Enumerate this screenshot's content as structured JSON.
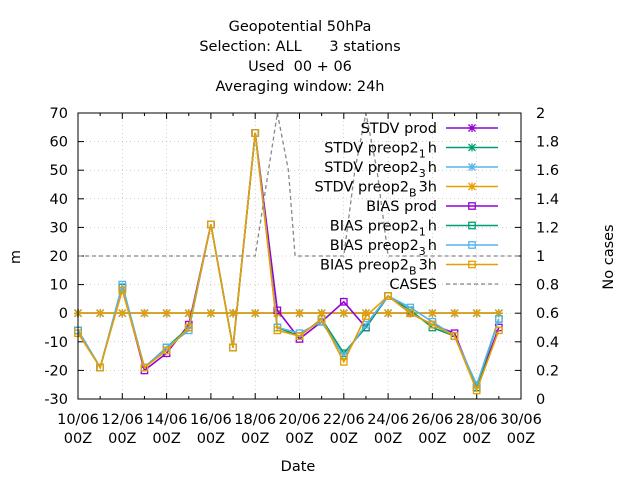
{
  "chart_data": {
    "type": "line",
    "title": [
      "Geopotential 50hPa",
      "Selection: ALL      3 stations",
      "Used  00 + 06",
      "Averaging window: 24h"
    ],
    "xlabel": "Date",
    "ylabel": "m",
    "y2label": "No cases",
    "x_ticks": [
      {
        "top": "10/06",
        "bottom": "00Z"
      },
      {
        "top": "12/06",
        "bottom": "00Z"
      },
      {
        "top": "14/06",
        "bottom": "00Z"
      },
      {
        "top": "16/06",
        "bottom": "00Z"
      },
      {
        "top": "18/06",
        "bottom": "00Z"
      },
      {
        "top": "20/06",
        "bottom": "00Z"
      },
      {
        "top": "22/06",
        "bottom": "00Z"
      },
      {
        "top": "24/06",
        "bottom": "00Z"
      },
      {
        "top": "26/06",
        "bottom": "00Z"
      },
      {
        "top": "28/06",
        "bottom": "00Z"
      },
      {
        "top": "30/06",
        "bottom": "00Z"
      }
    ],
    "x_range_days": [
      0,
      20
    ],
    "x_origin": "2010-06-10",
    "ylim": [
      -30,
      70
    ],
    "y_ticks": [
      -30,
      -20,
      -10,
      0,
      10,
      20,
      30,
      40,
      50,
      60,
      70
    ],
    "y2lim": [
      0,
      2
    ],
    "y2_ticks": [
      "0",
      "0.2",
      "0.4",
      "0.6",
      "0.8",
      "1",
      "1.2",
      "1.4",
      "1.6",
      "1.8",
      "2"
    ],
    "legend_position": "top-right",
    "x": [
      0,
      1,
      2,
      3,
      4,
      5,
      6,
      7,
      8,
      9,
      10,
      11,
      12,
      13,
      14,
      15,
      16,
      17,
      18,
      19
    ],
    "series": [
      {
        "name": "STDV prod",
        "color": "#9400d3",
        "marker": "x-star",
        "axis": "y",
        "values": [
          0,
          0,
          0,
          0,
          0,
          0,
          0,
          0,
          0,
          0,
          0,
          0,
          0,
          0,
          0,
          0,
          0,
          0,
          0,
          0
        ]
      },
      {
        "name": "STDV preop2 1h",
        "name_parts": [
          "STDV preop2",
          "1",
          "h"
        ],
        "color": "#009e73",
        "marker": "x-star",
        "axis": "y",
        "values": [
          0,
          0,
          0,
          0,
          0,
          0,
          0,
          0,
          0,
          0,
          0,
          0,
          0,
          0,
          0,
          0,
          0,
          0,
          0,
          0
        ]
      },
      {
        "name": "STDV preop2 3h",
        "name_parts": [
          "STDV preop2",
          "3",
          "h"
        ],
        "color": "#56b4e9",
        "marker": "x-star",
        "axis": "y",
        "values": [
          0,
          0,
          0,
          0,
          0,
          0,
          0,
          0,
          0,
          0,
          0,
          0,
          0,
          0,
          0,
          0,
          0,
          0,
          0,
          0
        ]
      },
      {
        "name": "STDV preop2 B 3h",
        "name_parts": [
          "STDV preop2",
          "B",
          "3h"
        ],
        "color": "#e69f00",
        "marker": "x-star",
        "axis": "y",
        "values": [
          0,
          0,
          0,
          0,
          0,
          0,
          0,
          0,
          0,
          0,
          0,
          0,
          0,
          0,
          0,
          0,
          0,
          0,
          0,
          0
        ]
      },
      {
        "name": "BIAS prod",
        "color": "#9400d3",
        "marker": "square",
        "axis": "y",
        "values": [
          -6,
          -19,
          9,
          -20,
          -14,
          -4,
          31,
          -12,
          63,
          1,
          -9,
          -3,
          4,
          -5,
          6,
          0,
          -4,
          -7,
          -26,
          -5
        ]
      },
      {
        "name": "BIAS preop2 1h",
        "name_parts": [
          "BIAS preop2",
          "1",
          "h"
        ],
        "color": "#009e73",
        "marker": "square",
        "axis": "y",
        "values": [
          -6,
          -19,
          9,
          -19,
          -12,
          -5,
          31,
          -12,
          63,
          -5,
          -8,
          -2,
          -14,
          -5,
          6,
          1,
          -5,
          -8,
          -26,
          -2
        ]
      },
      {
        "name": "BIAS preop2 3h",
        "name_parts": [
          "BIAS preop2",
          "3",
          "h"
        ],
        "color": "#56b4e9",
        "marker": "square",
        "axis": "y",
        "values": [
          -6,
          -19,
          10,
          -19,
          -12,
          -6,
          31,
          -12,
          63,
          -5,
          -7,
          -3,
          -15,
          -4,
          6,
          2,
          -3,
          -8,
          -25,
          -2
        ]
      },
      {
        "name": "BIAS preop2 B 3h",
        "name_parts": [
          "BIAS preop2",
          "B",
          "3h"
        ],
        "color": "#e69f00",
        "marker": "square",
        "axis": "y",
        "values": [
          -7,
          -19,
          8,
          -19,
          -13,
          -5,
          31,
          -12,
          63,
          -6,
          -8,
          -2,
          -17,
          -1,
          6,
          0,
          -4,
          -8,
          -27,
          -6
        ]
      },
      {
        "name": "CASES",
        "color": "#888888",
        "marker": "none",
        "dashed": true,
        "axis": "y2",
        "x": [
          0,
          8,
          8.6,
          9,
          9.5,
          9.8,
          10,
          12,
          12.5,
          13,
          13.5,
          14,
          20
        ],
        "values": [
          1,
          1,
          1.6,
          2,
          1.6,
          1,
          1,
          1,
          1.6,
          2,
          1.6,
          1,
          1
        ]
      }
    ]
  }
}
